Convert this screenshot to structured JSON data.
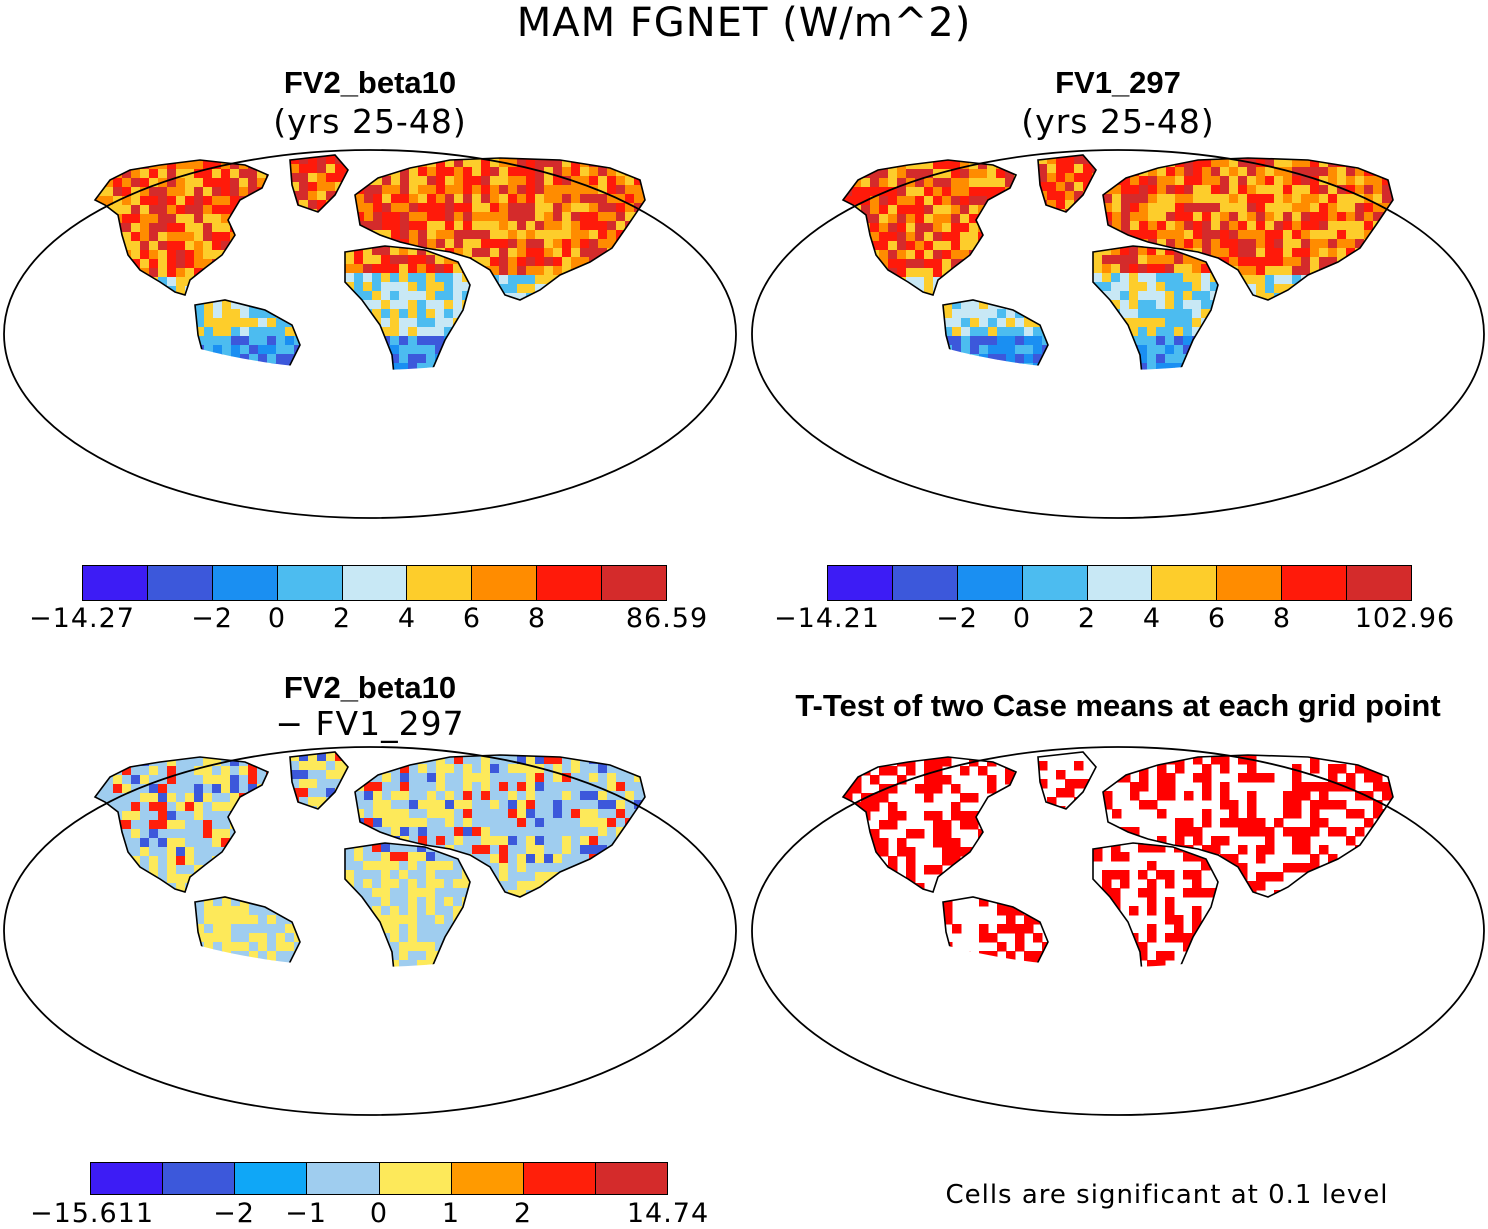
{
  "main_title": "MAM FGNET (W/m^2)",
  "panels": {
    "tl": {
      "title": "FV2_beta10",
      "subtitle": "(yrs 25-48)",
      "colorbar": {
        "colors": [
          "#3d1cf5",
          "#3c58db",
          "#1a8ff2",
          "#4cbcf0",
          "#c8e8f5",
          "#fdcd2b",
          "#ff8c00",
          "#ff1a0a",
          "#d42b2b"
        ],
        "ticks": [
          "−14.27",
          "−2",
          "0",
          "2",
          "4",
          "6",
          "8",
          "86.59"
        ]
      }
    },
    "tr": {
      "title": "FV1_297",
      "subtitle": "(yrs 25-48)",
      "colorbar": {
        "colors": [
          "#3d1cf5",
          "#3c58db",
          "#1a8ff2",
          "#4cbcf0",
          "#c8e8f5",
          "#fdcd2b",
          "#ff8c00",
          "#ff1a0a",
          "#d42b2b"
        ],
        "ticks": [
          "−14.21",
          "−2",
          "0",
          "2",
          "4",
          "6",
          "8",
          "102.96"
        ]
      }
    },
    "bl": {
      "title": "FV2_beta10",
      "subtitle": "− FV1_297",
      "colorbar": {
        "colors": [
          "#3d1cf5",
          "#3c58db",
          "#0fa7f7",
          "#9fcdef",
          "#fde95a",
          "#ff9a00",
          "#ff1f0a",
          "#d42b2b"
        ],
        "ticks": [
          "−15.611",
          "−2",
          "−1",
          "0",
          "1",
          "2",
          "14.74"
        ]
      }
    },
    "br": {
      "title": "T-Test of two Case means at each grid point",
      "note": "Cells are significant at 0.1 level",
      "significant_color": "#ff0000"
    }
  }
}
